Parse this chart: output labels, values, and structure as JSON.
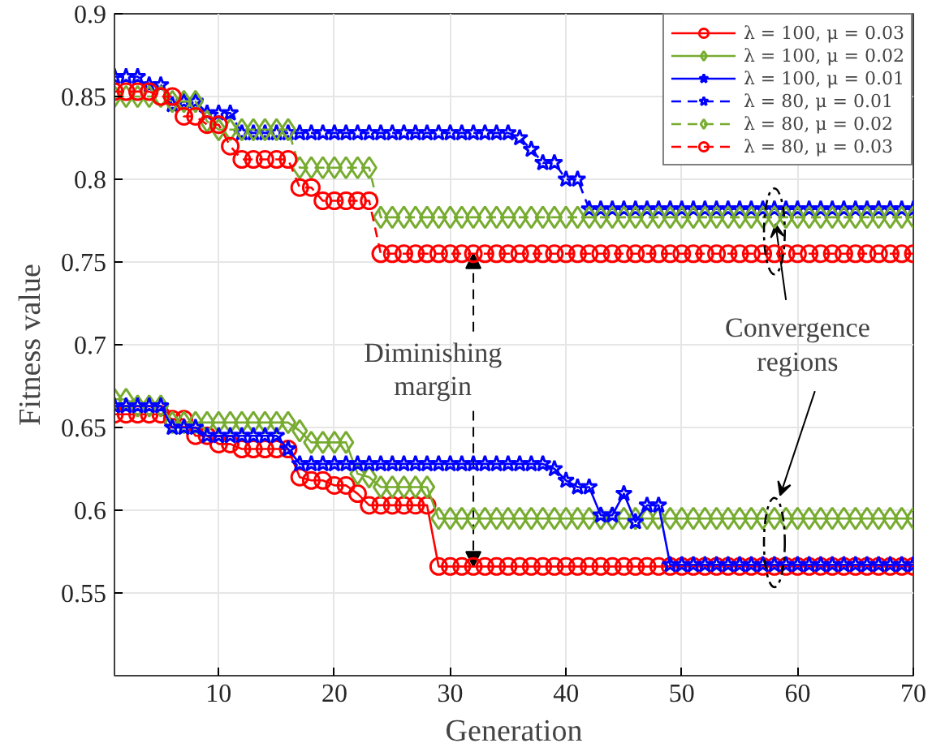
{
  "chart_data": {
    "type": "line",
    "xlabel": "Generation",
    "ylabel": "Fitness value",
    "x": [
      1,
      2,
      3,
      4,
      5,
      6,
      7,
      8,
      9,
      10,
      11,
      12,
      13,
      14,
      15,
      16,
      17,
      18,
      19,
      20,
      21,
      22,
      23,
      24,
      25,
      26,
      27,
      28,
      29,
      30,
      31,
      32,
      33,
      34,
      35,
      36,
      37,
      38,
      39,
      40,
      41,
      42,
      43,
      44,
      45,
      46,
      47,
      48,
      49,
      50,
      51,
      52,
      53,
      54,
      55,
      56,
      57,
      58,
      59,
      60,
      61,
      62,
      63,
      64,
      65,
      66,
      67,
      68,
      69,
      70
    ],
    "xlim": [
      1,
      70
    ],
    "xticks": [
      10,
      20,
      30,
      40,
      50,
      60,
      70
    ],
    "ylim": [
      0.5,
      0.9
    ],
    "yticks": [
      0.55,
      0.6,
      0.65,
      0.7,
      0.75,
      0.8,
      0.85,
      0.9
    ],
    "grid": true,
    "legend": "top right",
    "series": [
      {
        "name": "λ = 100, μ = 0.03",
        "color": "#ff0000",
        "marker": "circle",
        "line_style": "solid",
        "values": [
          0.658,
          0.658,
          0.658,
          0.658,
          0.658,
          0.655,
          0.655,
          0.645,
          0.645,
          0.64,
          0.64,
          0.637,
          0.637,
          0.637,
          0.637,
          0.637,
          0.62,
          0.618,
          0.618,
          0.615,
          0.615,
          0.61,
          0.603,
          0.603,
          0.603,
          0.603,
          0.603,
          0.603,
          0.566,
          0.566,
          0.566,
          0.566,
          0.566,
          0.566,
          0.566,
          0.566,
          0.566,
          0.566,
          0.566,
          0.566,
          0.566,
          0.566,
          0.566,
          0.566,
          0.566,
          0.566,
          0.566,
          0.566,
          0.566,
          0.566,
          0.566,
          0.566,
          0.566,
          0.566,
          0.566,
          0.566,
          0.566,
          0.566,
          0.566,
          0.566,
          0.566,
          0.566,
          0.566,
          0.566,
          0.566,
          0.566,
          0.566,
          0.566,
          0.566,
          0.566
        ]
      },
      {
        "name": "λ = 100, μ = 0.02",
        "color": "#77ac30",
        "marker": "diamond",
        "line_style": "solid",
        "values": [
          0.667,
          0.667,
          0.663,
          0.663,
          0.663,
          0.653,
          0.653,
          0.653,
          0.653,
          0.653,
          0.653,
          0.653,
          0.653,
          0.653,
          0.653,
          0.653,
          0.648,
          0.641,
          0.641,
          0.641,
          0.641,
          0.622,
          0.62,
          0.614,
          0.614,
          0.614,
          0.614,
          0.614,
          0.595,
          0.595,
          0.595,
          0.595,
          0.595,
          0.595,
          0.595,
          0.595,
          0.595,
          0.595,
          0.595,
          0.595,
          0.595,
          0.595,
          0.595,
          0.595,
          0.595,
          0.595,
          0.595,
          0.595,
          0.595,
          0.595,
          0.595,
          0.595,
          0.595,
          0.595,
          0.595,
          0.595,
          0.595,
          0.595,
          0.595,
          0.595,
          0.595,
          0.595,
          0.595,
          0.595,
          0.595,
          0.595,
          0.595,
          0.595,
          0.595,
          0.595
        ]
      },
      {
        "name": "λ = 100, μ = 0.01",
        "color": "#0000ff",
        "marker": "star",
        "line_style": "solid",
        "values": [
          0.663,
          0.663,
          0.663,
          0.663,
          0.663,
          0.65,
          0.65,
          0.65,
          0.645,
          0.645,
          0.645,
          0.645,
          0.645,
          0.645,
          0.645,
          0.637,
          0.628,
          0.628,
          0.628,
          0.628,
          0.628,
          0.628,
          0.628,
          0.628,
          0.628,
          0.628,
          0.628,
          0.628,
          0.628,
          0.628,
          0.628,
          0.628,
          0.628,
          0.628,
          0.628,
          0.628,
          0.628,
          0.628,
          0.625,
          0.618,
          0.614,
          0.614,
          0.597,
          0.597,
          0.61,
          0.593,
          0.603,
          0.603,
          0.567,
          0.567,
          0.567,
          0.567,
          0.567,
          0.567,
          0.567,
          0.567,
          0.567,
          0.567,
          0.567,
          0.567,
          0.567,
          0.567,
          0.567,
          0.567,
          0.567,
          0.567,
          0.567,
          0.567,
          0.567,
          0.567
        ]
      },
      {
        "name": "λ = 80, μ = 0.01",
        "color": "#0000ff",
        "marker": "star",
        "line_style": "dashed",
        "values": [
          0.862,
          0.862,
          0.862,
          0.857,
          0.857,
          0.845,
          0.847,
          0.847,
          0.84,
          0.84,
          0.84,
          0.828,
          0.828,
          0.828,
          0.828,
          0.828,
          0.828,
          0.828,
          0.828,
          0.828,
          0.828,
          0.828,
          0.828,
          0.828,
          0.828,
          0.828,
          0.828,
          0.828,
          0.828,
          0.828,
          0.828,
          0.828,
          0.828,
          0.828,
          0.828,
          0.825,
          0.818,
          0.81,
          0.81,
          0.8,
          0.8,
          0.782,
          0.782,
          0.782,
          0.782,
          0.782,
          0.782,
          0.782,
          0.782,
          0.782,
          0.782,
          0.782,
          0.782,
          0.782,
          0.782,
          0.782,
          0.782,
          0.782,
          0.782,
          0.782,
          0.782,
          0.782,
          0.782,
          0.782,
          0.782,
          0.782,
          0.782,
          0.782,
          0.782,
          0.782
        ]
      },
      {
        "name": "λ = 80, μ = 0.02",
        "color": "#77ac30",
        "marker": "diamond",
        "line_style": "dashed",
        "values": [
          0.85,
          0.85,
          0.85,
          0.85,
          0.85,
          0.847,
          0.847,
          0.847,
          0.835,
          0.83,
          0.83,
          0.83,
          0.83,
          0.83,
          0.83,
          0.83,
          0.807,
          0.807,
          0.807,
          0.807,
          0.807,
          0.807,
          0.807,
          0.777,
          0.777,
          0.777,
          0.777,
          0.777,
          0.777,
          0.777,
          0.777,
          0.777,
          0.777,
          0.777,
          0.777,
          0.777,
          0.777,
          0.777,
          0.777,
          0.777,
          0.777,
          0.777,
          0.777,
          0.777,
          0.777,
          0.777,
          0.777,
          0.777,
          0.777,
          0.777,
          0.777,
          0.777,
          0.777,
          0.777,
          0.777,
          0.777,
          0.777,
          0.777,
          0.777,
          0.777,
          0.777,
          0.777,
          0.777,
          0.777,
          0.777,
          0.777,
          0.777,
          0.777,
          0.777,
          0.777
        ]
      },
      {
        "name": "λ = 80, μ = 0.03",
        "color": "#ff0000",
        "marker": "circle",
        "line_style": "dashed",
        "values": [
          0.853,
          0.853,
          0.853,
          0.853,
          0.85,
          0.85,
          0.838,
          0.838,
          0.833,
          0.833,
          0.82,
          0.812,
          0.812,
          0.812,
          0.812,
          0.812,
          0.795,
          0.795,
          0.787,
          0.787,
          0.787,
          0.787,
          0.787,
          0.755,
          0.755,
          0.755,
          0.755,
          0.755,
          0.755,
          0.755,
          0.755,
          0.755,
          0.755,
          0.755,
          0.755,
          0.755,
          0.755,
          0.755,
          0.755,
          0.755,
          0.755,
          0.755,
          0.755,
          0.755,
          0.755,
          0.755,
          0.755,
          0.755,
          0.755,
          0.755,
          0.755,
          0.755,
          0.755,
          0.755,
          0.755,
          0.755,
          0.755,
          0.755,
          0.755,
          0.755,
          0.755,
          0.755,
          0.755,
          0.755,
          0.755,
          0.755,
          0.755,
          0.755,
          0.755,
          0.755
        ]
      }
    ],
    "annotations": [
      {
        "text": "Diminishing margin",
        "x": 32,
        "y": 0.755
      },
      {
        "text": "Convergence regions",
        "x": 58,
        "y": 0.777
      }
    ]
  }
}
